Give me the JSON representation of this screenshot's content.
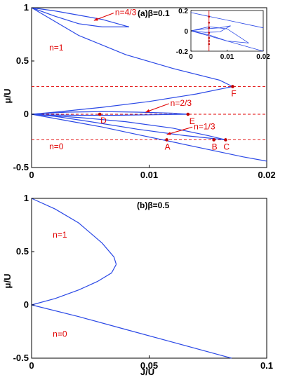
{
  "chart_data": [
    {
      "type": "line",
      "panel_label": "(a)",
      "title": "(a)β=0.1",
      "xlabel": "",
      "ylabel": "μ/U",
      "xlim": [
        0,
        0.02
      ],
      "ylim": [
        -0.5,
        1
      ],
      "xticks": [
        "0",
        "0.01",
        "0.02"
      ],
      "yticks": [
        "-0.5",
        "0",
        "0.5",
        "1"
      ],
      "reference_lines_mu": [
        0.26,
        0.0,
        -0.24
      ],
      "region_labels": [
        {
          "text": "n=1",
          "x": 0.0015,
          "y": 0.6
        },
        {
          "text": "n=0",
          "x": 0.0015,
          "y": -0.33
        }
      ],
      "lobe_labels": [
        {
          "text": "n=4/3",
          "x": 0.0071,
          "y": 0.93,
          "arrow_to": [
            0.0053,
            0.88
          ]
        },
        {
          "text": "n=2/3",
          "x": 0.0118,
          "y": 0.08,
          "arrow_to": [
            0.0097,
            0.02
          ]
        },
        {
          "text": "n=1/3",
          "x": 0.0138,
          "y": -0.14,
          "arrow_to": [
            0.0115,
            -0.19
          ]
        }
      ],
      "points": [
        {
          "label": "A",
          "x": 0.0115,
          "y": -0.24
        },
        {
          "label": "B",
          "x": 0.0155,
          "y": -0.24
        },
        {
          "label": "C",
          "x": 0.0165,
          "y": -0.24
        },
        {
          "label": "D",
          "x": 0.0058,
          "y": 0.0
        },
        {
          "label": "E",
          "x": 0.0133,
          "y": 0.0
        },
        {
          "label": "F",
          "x": 0.0171,
          "y": 0.26
        }
      ],
      "series": [
        {
          "x": [
            0,
            0.004,
            0.008,
            0.012,
            0.016,
            0.0171
          ],
          "y": [
            1.0,
            0.74,
            0.56,
            0.43,
            0.32,
            0.26
          ]
        },
        {
          "x": [
            0.0171,
            0.014,
            0.01,
            0.006,
            0.002,
            0
          ],
          "y": [
            0.26,
            0.19,
            0.12,
            0.065,
            0.02,
            0.0
          ]
        },
        {
          "x": [
            0,
            0.003,
            0.006,
            0.009,
            0.012,
            0.015,
            0.018,
            0.02
          ],
          "y": [
            0.0,
            -0.06,
            -0.12,
            -0.19,
            -0.26,
            -0.33,
            -0.4,
            -0.44
          ]
        },
        {
          "x": [
            0,
            0.004,
            0.008,
            0.012,
            0.015,
            0.0165
          ],
          "y": [
            0.0,
            -0.03,
            -0.07,
            -0.13,
            -0.2,
            -0.24
          ]
        },
        {
          "x": [
            0.0165,
            0.013,
            0.009,
            0.005,
            0.002,
            0
          ],
          "y": [
            -0.24,
            -0.2,
            -0.14,
            -0.07,
            -0.02,
            0.0
          ]
        },
        {
          "x": [
            0,
            0.003,
            0.006,
            0.009,
            0.012,
            0.0133
          ],
          "y": [
            0.0,
            0.02,
            0.025,
            0.02,
            0.01,
            0.0
          ]
        },
        {
          "x": [
            0.0133,
            0.01,
            0.007,
            0.004,
            0.001,
            0
          ],
          "y": [
            0.0,
            -0.005,
            -0.01,
            -0.01,
            -0.005,
            0.0
          ]
        },
        {
          "x": [
            0,
            0.002,
            0.004,
            0.006,
            0.0083
          ],
          "y": [
            1.0,
            0.97,
            0.93,
            0.89,
            0.82
          ]
        },
        {
          "x": [
            0.0083,
            0.006,
            0.004,
            0.002,
            0
          ],
          "y": [
            0.82,
            0.82,
            0.85,
            0.92,
            1.0
          ]
        }
      ],
      "inset": {
        "xlim": [
          0,
          0.02
        ],
        "ylim": [
          -0.2,
          0.2
        ],
        "xticks": [
          "0",
          "0.01",
          "0.02"
        ],
        "yticks": [
          "-0.2",
          "0",
          "0.2"
        ],
        "vertical_line_x": 0.005
      }
    },
    {
      "type": "line",
      "panel_label": "(b)",
      "title": "(b)β=0.5",
      "xlabel": "J/U",
      "ylabel": "μ/U",
      "xlim": [
        0,
        0.1
      ],
      "ylim": [
        -0.5,
        1
      ],
      "xticks": [
        "0",
        "0.05",
        "0.1"
      ],
      "yticks": [
        "-0.5",
        "0",
        "0.5",
        "1"
      ],
      "region_labels": [
        {
          "text": "n=1",
          "x": 0.009,
          "y": 0.63
        },
        {
          "text": "n=0",
          "x": 0.009,
          "y": -0.3
        }
      ],
      "series": [
        {
          "x": [
            0,
            0.01,
            0.02,
            0.03,
            0.035,
            0.036
          ],
          "y": [
            1.0,
            0.9,
            0.77,
            0.58,
            0.45,
            0.38
          ]
        },
        {
          "x": [
            0.036,
            0.034,
            0.028,
            0.02,
            0.01,
            0
          ],
          "y": [
            0.38,
            0.3,
            0.22,
            0.14,
            0.06,
            0.0
          ]
        },
        {
          "x": [
            0,
            0.02,
            0.04,
            0.06,
            0.08,
            0.085
          ],
          "y": [
            0.0,
            -0.11,
            -0.23,
            -0.35,
            -0.47,
            -0.5
          ]
        }
      ]
    }
  ]
}
